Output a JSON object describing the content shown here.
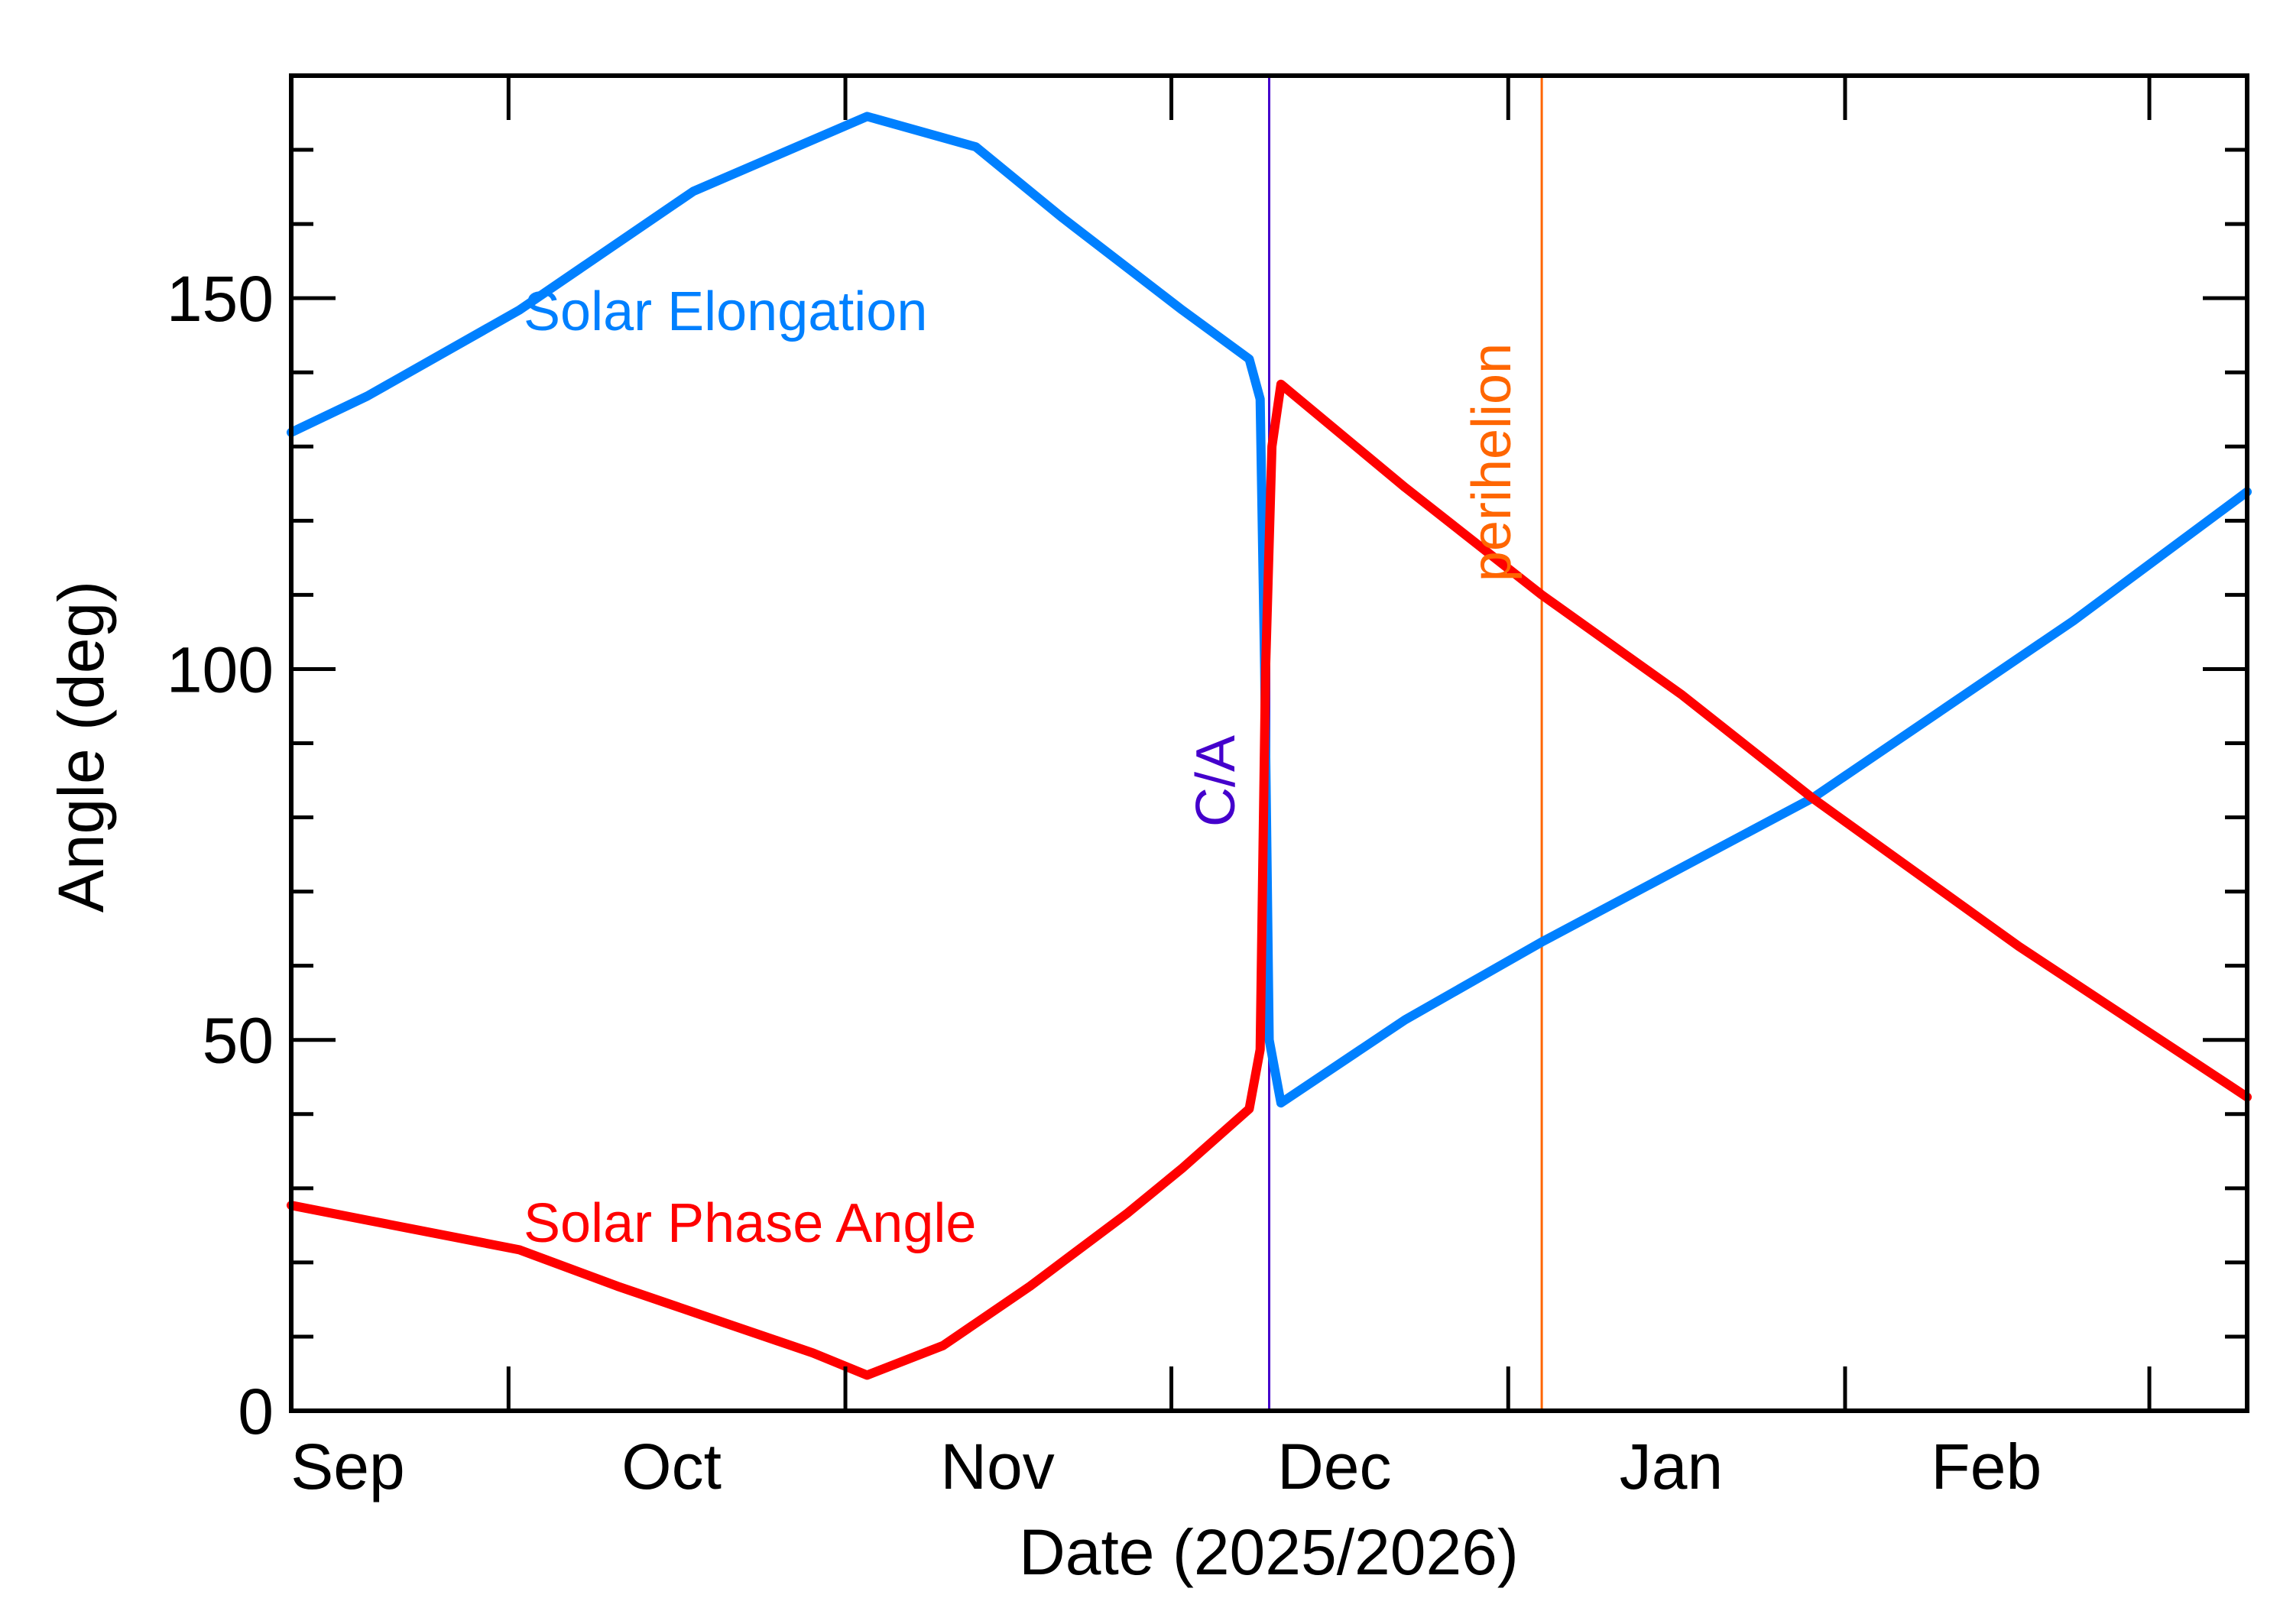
{
  "chart_data": {
    "type": "line",
    "title": "",
    "xlabel": "Date (2025/2026)",
    "ylabel": "Angle (deg)",
    "xlim": [
      "2025-09-11",
      "2026-03-10"
    ],
    "ylim": [
      0,
      180
    ],
    "y_major_ticks": [
      0,
      50,
      100,
      150
    ],
    "y_minor_step": 10,
    "x_month_ticks": [
      "2025-10-01",
      "2025-11-01",
      "2025-12-01",
      "2026-01-01",
      "2026-02-01",
      "2026-03-01"
    ],
    "x_tick_labels": [
      {
        "label": "Sep",
        "at": "2025-09-15"
      },
      {
        "label": "Oct",
        "at": "2025-10-16"
      },
      {
        "label": "Nov",
        "at": "2025-11-15"
      },
      {
        "label": "Dec",
        "at": "2025-12-16"
      },
      {
        "label": "Jan",
        "at": "2026-01-16"
      },
      {
        "label": "Feb",
        "at": "2026-02-14"
      }
    ],
    "grid": false,
    "series": [
      {
        "name": "Solar Elongation",
        "color": "#0080FF",
        "points": [
          [
            "2025-09-11T00:00",
            131.9
          ],
          [
            "2025-09-18T00:00",
            136.8
          ],
          [
            "2025-10-02T00:00",
            148.4
          ],
          [
            "2025-10-18T00:00",
            164.4
          ],
          [
            "2025-11-03T00:00",
            174.5
          ],
          [
            "2025-11-13T00:00",
            170.4
          ],
          [
            "2025-11-21T00:00",
            160.8
          ],
          [
            "2025-12-02T00:00",
            148.4
          ],
          [
            "2025-12-08T04:00",
            141.8
          ],
          [
            "2025-12-09T04:00",
            136.4
          ],
          [
            "2025-12-09T14:00",
            100.0
          ],
          [
            "2025-12-10T00:00",
            50.0
          ],
          [
            "2025-12-11T02:00",
            41.5
          ],
          [
            "2025-12-22T12:00",
            52.7
          ],
          [
            "2026-01-04T02:00",
            63.2
          ],
          [
            "2026-01-29T00:00",
            82.6
          ],
          [
            "2026-02-22T00:00",
            106.5
          ],
          [
            "2026-03-10T00:00",
            123.9
          ]
        ]
      },
      {
        "name": "Solar Phase Angle",
        "color": "#FF0000",
        "points": [
          [
            "2025-09-11T00:00",
            27.7
          ],
          [
            "2025-09-18T00:00",
            25.7
          ],
          [
            "2025-10-02T00:00",
            21.7
          ],
          [
            "2025-10-11T00:00",
            16.8
          ],
          [
            "2025-10-19T00:00",
            12.8
          ],
          [
            "2025-10-29T00:00",
            7.8
          ],
          [
            "2025-11-03T00:00",
            4.8
          ],
          [
            "2025-11-10T00:00",
            8.8
          ],
          [
            "2025-11-18T00:00",
            16.8
          ],
          [
            "2025-11-27T00:00",
            26.7
          ],
          [
            "2025-12-02T00:00",
            32.7
          ],
          [
            "2025-12-08T04:00",
            40.7
          ],
          [
            "2025-12-09T04:00",
            48.7
          ],
          [
            "2025-12-09T16:00",
            100.0
          ],
          [
            "2025-12-10T06:00",
            130.0
          ],
          [
            "2025-12-11T02:00",
            138.4
          ],
          [
            "2025-12-22T12:00",
            124.5
          ],
          [
            "2026-01-04T02:00",
            110.0
          ],
          [
            "2026-01-17T00:00",
            96.5
          ],
          [
            "2026-01-29T00:00",
            82.6
          ],
          [
            "2026-02-17T00:00",
            62.6
          ],
          [
            "2026-03-10T00:00",
            42.3
          ]
        ]
      }
    ],
    "events": [
      {
        "label": "C/A",
        "date": "2025-12-10T00:00",
        "color": "#4400CC"
      },
      {
        "label": "perihelion",
        "date": "2026-01-04T02:00",
        "color": "#FF6600"
      }
    ]
  }
}
